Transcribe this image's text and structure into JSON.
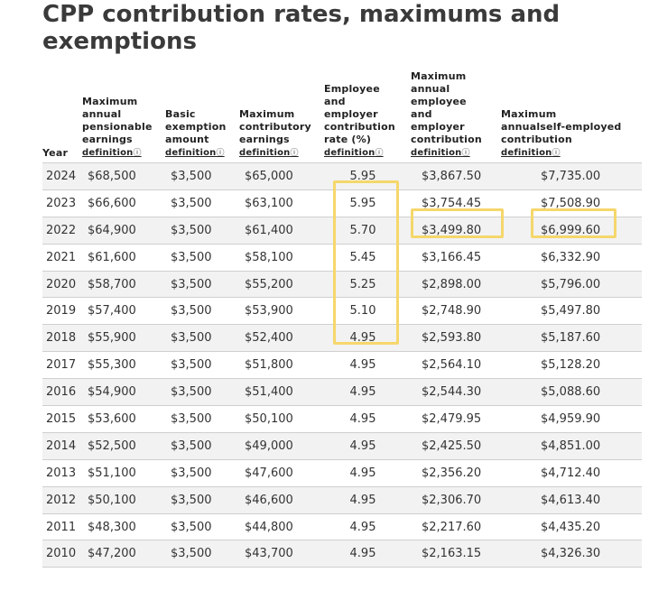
{
  "title": "CPP contribution rates, maximums and exemptions",
  "headers": {
    "year": "Year",
    "max_pensionable": [
      "Maximum",
      "annual",
      "pensionable",
      "earnings"
    ],
    "basic_exemption": [
      "Basic",
      "exemption",
      "amount"
    ],
    "max_contributory": [
      "Maximum",
      "contributory",
      "earnings"
    ],
    "rate": [
      "Employee",
      "and",
      "employer",
      "contribution",
      "rate (%)"
    ],
    "max_employee_employer": [
      "Maximum",
      "annual",
      "employee",
      "and",
      "employer",
      "contribution"
    ],
    "max_self_employed": [
      "Maximum",
      "annualself-employed",
      "contribution"
    ],
    "definition_link": "definition",
    "definition_icon": "question-circle-icon",
    "definition_glyph": "ⓘ"
  },
  "highlight_color": "#f5d76b",
  "rows": [
    {
      "year": "2024",
      "max_pensionable": "$68,500",
      "basic": "$3,500",
      "max_contributory": "$65,000",
      "rate": "5.95",
      "max_emp": "$3,867.50",
      "max_self": "$7,735.00"
    },
    {
      "year": "2023",
      "max_pensionable": "$66,600",
      "basic": "$3,500",
      "max_contributory": "$63,100",
      "rate": "5.95",
      "max_emp": "$3,754.45",
      "max_self": "$7,508.90"
    },
    {
      "year": "2022",
      "max_pensionable": "$64,900",
      "basic": "$3,500",
      "max_contributory": "$61,400",
      "rate": "5.70",
      "max_emp": "$3,499.80",
      "max_self": "$6,999.60"
    },
    {
      "year": "2021",
      "max_pensionable": "$61,600",
      "basic": "$3,500",
      "max_contributory": "$58,100",
      "rate": "5.45",
      "max_emp": "$3,166.45",
      "max_self": "$6,332.90"
    },
    {
      "year": "2020",
      "max_pensionable": "$58,700",
      "basic": "$3,500",
      "max_contributory": "$55,200",
      "rate": "5.25",
      "max_emp": "$2,898.00",
      "max_self": "$5,796.00"
    },
    {
      "year": "2019",
      "max_pensionable": "$57,400",
      "basic": "$3,500",
      "max_contributory": "$53,900",
      "rate": "5.10",
      "max_emp": "$2,748.90",
      "max_self": "$5,497.80"
    },
    {
      "year": "2018",
      "max_pensionable": "$55,900",
      "basic": "$3,500",
      "max_contributory": "$52,400",
      "rate": "4.95",
      "max_emp": "$2,593.80",
      "max_self": "$5,187.60"
    },
    {
      "year": "2017",
      "max_pensionable": "$55,300",
      "basic": "$3,500",
      "max_contributory": "$51,800",
      "rate": "4.95",
      "max_emp": "$2,564.10",
      "max_self": "$5,128.20"
    },
    {
      "year": "2016",
      "max_pensionable": "$54,900",
      "basic": "$3,500",
      "max_contributory": "$51,400",
      "rate": "4.95",
      "max_emp": "$2,544.30",
      "max_self": "$5,088.60"
    },
    {
      "year": "2015",
      "max_pensionable": "$53,600",
      "basic": "$3,500",
      "max_contributory": "$50,100",
      "rate": "4.95",
      "max_emp": "$2,479.95",
      "max_self": "$4,959.90"
    },
    {
      "year": "2014",
      "max_pensionable": "$52,500",
      "basic": "$3,500",
      "max_contributory": "$49,000",
      "rate": "4.95",
      "max_emp": "$2,425.50",
      "max_self": "$4,851.00"
    },
    {
      "year": "2013",
      "max_pensionable": "$51,100",
      "basic": "$3,500",
      "max_contributory": "$47,600",
      "rate": "4.95",
      "max_emp": "$2,356.20",
      "max_self": "$4,712.40"
    },
    {
      "year": "2012",
      "max_pensionable": "$50,100",
      "basic": "$3,500",
      "max_contributory": "$46,600",
      "rate": "4.95",
      "max_emp": "$2,306.70",
      "max_self": "$4,613.40"
    },
    {
      "year": "2011",
      "max_pensionable": "$48,300",
      "basic": "$3,500",
      "max_contributory": "$44,800",
      "rate": "4.95",
      "max_emp": "$2,217.60",
      "max_self": "$4,435.20"
    },
    {
      "year": "2010",
      "max_pensionable": "$47,200",
      "basic": "$3,500",
      "max_contributory": "$43,700",
      "rate": "4.95",
      "max_emp": "$2,163.15",
      "max_self": "$4,326.30"
    }
  ]
}
